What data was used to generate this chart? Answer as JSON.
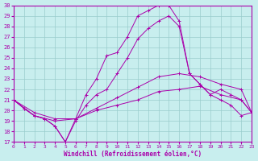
{
  "xlabel": "Windchill (Refroidissement éolien,°C)",
  "bg_color": "#c8eeee",
  "line_color": "#aa00aa",
  "grid_color": "#99cccc",
  "ylim": [
    17,
    30
  ],
  "xlim": [
    0,
    23
  ],
  "yticks": [
    17,
    18,
    19,
    20,
    21,
    22,
    23,
    24,
    25,
    26,
    27,
    28,
    29,
    30
  ],
  "xticks": [
    0,
    1,
    2,
    3,
    4,
    5,
    6,
    7,
    8,
    9,
    10,
    11,
    12,
    13,
    14,
    15,
    16,
    17,
    18,
    19,
    20,
    21,
    22,
    23
  ],
  "series": [
    {
      "x": [
        0,
        1,
        2,
        3,
        4,
        5,
        6,
        7,
        8,
        9,
        10,
        11,
        12,
        13,
        14,
        15,
        16,
        17,
        18,
        19,
        20,
        21,
        22,
        23
      ],
      "y": [
        21.0,
        20.2,
        19.5,
        19.2,
        18.5,
        17.0,
        19.2,
        21.5,
        23.0,
        25.2,
        25.5,
        27.0,
        29.0,
        29.5,
        30.0,
        30.0,
        28.5,
        23.5,
        22.5,
        21.5,
        21.0,
        20.5,
        19.5,
        19.8
      ]
    },
    {
      "x": [
        0,
        1,
        2,
        3,
        4,
        5,
        6,
        7,
        8,
        9,
        10,
        11,
        12,
        13,
        14,
        15,
        16,
        17,
        18,
        19,
        20,
        21,
        22,
        23
      ],
      "y": [
        21.0,
        20.2,
        19.5,
        19.2,
        18.5,
        17.0,
        19.0,
        20.5,
        21.5,
        22.0,
        23.5,
        25.0,
        26.8,
        27.8,
        28.5,
        29.0,
        28.0,
        23.5,
        22.5,
        21.5,
        22.0,
        21.5,
        21.0,
        19.8
      ]
    },
    {
      "x": [
        0,
        2,
        4,
        6,
        8,
        10,
        12,
        14,
        16,
        18,
        20,
        22,
        23
      ],
      "y": [
        21.0,
        19.5,
        19.0,
        19.2,
        20.2,
        21.2,
        22.2,
        23.2,
        23.5,
        23.2,
        22.5,
        22.0,
        19.8
      ]
    },
    {
      "x": [
        0,
        2,
        4,
        6,
        8,
        10,
        12,
        14,
        16,
        18,
        20,
        22,
        23
      ],
      "y": [
        21.0,
        19.8,
        19.2,
        19.2,
        20.0,
        20.5,
        21.0,
        21.8,
        22.0,
        22.3,
        21.5,
        21.0,
        19.8
      ]
    }
  ]
}
